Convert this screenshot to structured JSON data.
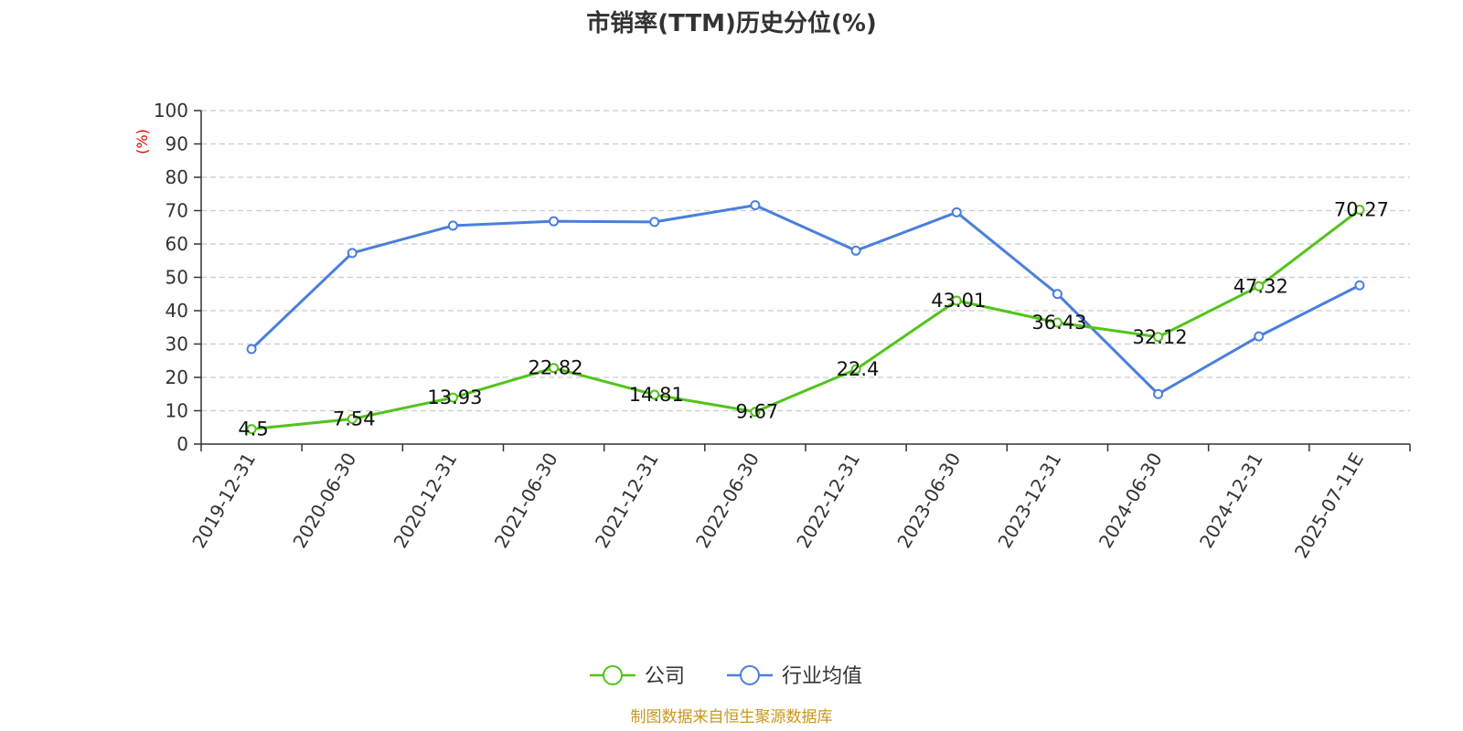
{
  "source_note": "制图数据来自恒生聚源数据库",
  "colors": {
    "company": "#52c41a",
    "industry": "#4a7fdc",
    "ylabel": "#e60000",
    "source": "#c8961e",
    "grid": "#cccccc",
    "axis": "#333333"
  },
  "chart_data": {
    "type": "line",
    "title": "市销率(TTM)历史分位(%)",
    "xlabel": "",
    "ylabel": "(%)",
    "ylim": [
      0,
      100
    ],
    "yticks": [
      0,
      10,
      20,
      30,
      40,
      50,
      60,
      70,
      80,
      90,
      100
    ],
    "grid": true,
    "legend_position": "bottom-center",
    "categories": [
      "2019-12-31",
      "2020-06-30",
      "2020-12-31",
      "2021-06-30",
      "2021-12-31",
      "2022-06-30",
      "2022-12-31",
      "2023-06-30",
      "2023-12-31",
      "2024-06-30",
      "2024-12-31",
      "2025-07-11E"
    ],
    "series": [
      {
        "name": "公司",
        "color_key": "company",
        "show_labels": true,
        "values": [
          4.5,
          7.54,
          13.93,
          22.82,
          14.81,
          9.67,
          22.4,
          43.01,
          36.43,
          32.12,
          47.32,
          70.27
        ]
      },
      {
        "name": "行业均值",
        "color_key": "industry",
        "show_labels": false,
        "values": [
          28.5,
          57.3,
          65.5,
          66.8,
          66.6,
          71.6,
          58.0,
          69.5,
          45.0,
          15.0,
          32.3,
          47.6
        ]
      }
    ]
  }
}
